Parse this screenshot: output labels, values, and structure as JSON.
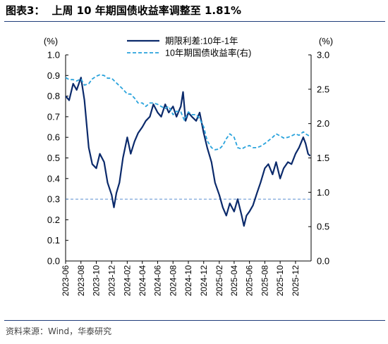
{
  "header": {
    "figure_label": "图表3：",
    "title": "上周 10 年期国债收益率调整至 1.81%"
  },
  "footer": {
    "source": "资料来源：Wind，华泰研究"
  },
  "colors": {
    "spread": "#0b2a6b",
    "yield": "#2aa3dc",
    "refline": "#5a8fd0",
    "rule": "#1f3d7a"
  },
  "chart_data": {
    "type": "line",
    "ylabel_left": "(%)",
    "ylabel_right": "(%)",
    "ylim_left": [
      0,
      1.0
    ],
    "ylim_right": [
      0,
      3.0
    ],
    "yticks_left": [
      "0.0",
      "0.1",
      "0.2",
      "0.3",
      "0.4",
      "0.5",
      "0.6",
      "0.7",
      "0.8",
      "0.9",
      "1.0"
    ],
    "yticks_right": [
      "0.0",
      "0.5",
      "1.0",
      "1.5",
      "2.0",
      "2.5",
      "3.0"
    ],
    "xlim": [
      "2023-06",
      "2026-02"
    ],
    "x_ticks": [
      "2023-06",
      "2023-08",
      "2023-10",
      "2023-12",
      "2024-02",
      "2024-04",
      "2024-06",
      "2024-08",
      "2024-10",
      "2024-12",
      "2025-02",
      "2025-04",
      "2025-06",
      "2025-08",
      "2025-10",
      "2025-12"
    ],
    "legend_position": "top-center",
    "reference_line": {
      "axis": "left",
      "value": 0.3,
      "style": "dashed"
    },
    "series": [
      {
        "name": "期限利差:10年-1年",
        "axis": "left",
        "style": "solid",
        "points": [
          [
            "2023-06-01",
            0.8
          ],
          [
            "2023-06-15",
            0.78
          ],
          [
            "2023-07-01",
            0.86
          ],
          [
            "2023-07-15",
            0.83
          ],
          [
            "2023-08-01",
            0.89
          ],
          [
            "2023-08-15",
            0.78
          ],
          [
            "2023-09-01",
            0.55
          ],
          [
            "2023-09-15",
            0.47
          ],
          [
            "2023-10-01",
            0.45
          ],
          [
            "2023-10-15",
            0.52
          ],
          [
            "2023-11-01",
            0.48
          ],
          [
            "2023-11-15",
            0.38
          ],
          [
            "2023-12-01",
            0.32
          ],
          [
            "2023-12-10",
            0.26
          ],
          [
            "2023-12-20",
            0.33
          ],
          [
            "2024-01-01",
            0.38
          ],
          [
            "2024-01-15",
            0.5
          ],
          [
            "2024-02-01",
            0.6
          ],
          [
            "2024-02-15",
            0.52
          ],
          [
            "2024-03-01",
            0.58
          ],
          [
            "2024-03-15",
            0.62
          ],
          [
            "2024-04-01",
            0.65
          ],
          [
            "2024-04-15",
            0.68
          ],
          [
            "2024-05-01",
            0.7
          ],
          [
            "2024-05-15",
            0.76
          ],
          [
            "2024-06-01",
            0.72
          ],
          [
            "2024-06-15",
            0.7
          ],
          [
            "2024-07-01",
            0.76
          ],
          [
            "2024-07-15",
            0.72
          ],
          [
            "2024-08-01",
            0.75
          ],
          [
            "2024-08-15",
            0.7
          ],
          [
            "2024-09-01",
            0.75
          ],
          [
            "2024-09-10",
            0.82
          ],
          [
            "2024-09-20",
            0.68
          ],
          [
            "2024-10-01",
            0.72
          ],
          [
            "2024-10-15",
            0.7
          ],
          [
            "2024-11-01",
            0.68
          ],
          [
            "2024-11-15",
            0.72
          ],
          [
            "2024-12-01",
            0.62
          ],
          [
            "2024-12-15",
            0.55
          ],
          [
            "2025-01-01",
            0.48
          ],
          [
            "2025-01-15",
            0.38
          ],
          [
            "2025-02-01",
            0.32
          ],
          [
            "2025-02-15",
            0.26
          ],
          [
            "2025-03-01",
            0.22
          ],
          [
            "2025-03-15",
            0.28
          ],
          [
            "2025-04-01",
            0.24
          ],
          [
            "2025-04-15",
            0.3
          ],
          [
            "2025-05-01",
            0.22
          ],
          [
            "2025-05-10",
            0.17
          ],
          [
            "2025-05-20",
            0.22
          ],
          [
            "2025-06-01",
            0.24
          ],
          [
            "2025-06-15",
            0.27
          ],
          [
            "2025-07-01",
            0.33
          ],
          [
            "2025-07-15",
            0.38
          ],
          [
            "2025-08-01",
            0.45
          ],
          [
            "2025-08-15",
            0.47
          ],
          [
            "2025-09-01",
            0.42
          ],
          [
            "2025-09-15",
            0.48
          ],
          [
            "2025-10-01",
            0.4
          ],
          [
            "2025-10-15",
            0.45
          ],
          [
            "2025-11-01",
            0.48
          ],
          [
            "2025-11-15",
            0.47
          ],
          [
            "2025-12-01",
            0.52
          ],
          [
            "2025-12-15",
            0.55
          ],
          [
            "2026-01-01",
            0.6
          ],
          [
            "2026-01-10",
            0.57
          ],
          [
            "2026-01-20",
            0.52
          ],
          [
            "2026-01-28",
            0.51
          ]
        ]
      },
      {
        "name": "10年期国债收益率(右)",
        "axis": "right",
        "style": "dashed",
        "points": [
          [
            "2023-06-01",
            2.67
          ],
          [
            "2023-06-15",
            2.64
          ],
          [
            "2023-07-01",
            2.64
          ],
          [
            "2023-07-15",
            2.62
          ],
          [
            "2023-08-01",
            2.65
          ],
          [
            "2023-08-15",
            2.56
          ],
          [
            "2023-09-01",
            2.58
          ],
          [
            "2023-09-15",
            2.65
          ],
          [
            "2023-10-01",
            2.69
          ],
          [
            "2023-10-15",
            2.71
          ],
          [
            "2023-11-01",
            2.7
          ],
          [
            "2023-11-15",
            2.66
          ],
          [
            "2023-12-01",
            2.66
          ],
          [
            "2023-12-15",
            2.61
          ],
          [
            "2024-01-01",
            2.55
          ],
          [
            "2024-01-15",
            2.5
          ],
          [
            "2024-02-01",
            2.43
          ],
          [
            "2024-02-15",
            2.43
          ],
          [
            "2024-03-01",
            2.37
          ],
          [
            "2024-03-15",
            2.3
          ],
          [
            "2024-04-01",
            2.3
          ],
          [
            "2024-04-15",
            2.25
          ],
          [
            "2024-05-01",
            2.3
          ],
          [
            "2024-05-15",
            2.3
          ],
          [
            "2024-06-01",
            2.28
          ],
          [
            "2024-06-15",
            2.25
          ],
          [
            "2024-07-01",
            2.22
          ],
          [
            "2024-07-15",
            2.25
          ],
          [
            "2024-08-01",
            2.13
          ],
          [
            "2024-08-15",
            2.18
          ],
          [
            "2024-09-01",
            2.17
          ],
          [
            "2024-09-15",
            2.05
          ],
          [
            "2024-10-01",
            2.17
          ],
          [
            "2024-10-15",
            2.13
          ],
          [
            "2024-11-01",
            2.13
          ],
          [
            "2024-11-15",
            2.07
          ],
          [
            "2024-12-01",
            1.95
          ],
          [
            "2024-12-15",
            1.75
          ],
          [
            "2025-01-01",
            1.65
          ],
          [
            "2025-01-15",
            1.62
          ],
          [
            "2025-02-01",
            1.63
          ],
          [
            "2025-02-15",
            1.68
          ],
          [
            "2025-03-01",
            1.78
          ],
          [
            "2025-03-15",
            1.85
          ],
          [
            "2025-04-01",
            1.8
          ],
          [
            "2025-04-15",
            1.65
          ],
          [
            "2025-05-01",
            1.63
          ],
          [
            "2025-05-15",
            1.66
          ],
          [
            "2025-06-01",
            1.68
          ],
          [
            "2025-06-15",
            1.65
          ],
          [
            "2025-07-01",
            1.65
          ],
          [
            "2025-07-15",
            1.67
          ],
          [
            "2025-08-01",
            1.71
          ],
          [
            "2025-08-15",
            1.75
          ],
          [
            "2025-09-01",
            1.8
          ],
          [
            "2025-09-15",
            1.85
          ],
          [
            "2025-10-01",
            1.82
          ],
          [
            "2025-10-15",
            1.79
          ],
          [
            "2025-11-01",
            1.8
          ],
          [
            "2025-11-15",
            1.82
          ],
          [
            "2025-12-01",
            1.85
          ],
          [
            "2025-12-15",
            1.83
          ],
          [
            "2026-01-01",
            1.88
          ],
          [
            "2026-01-10",
            1.85
          ],
          [
            "2026-01-20",
            1.83
          ],
          [
            "2026-01-28",
            1.81
          ]
        ]
      }
    ]
  }
}
